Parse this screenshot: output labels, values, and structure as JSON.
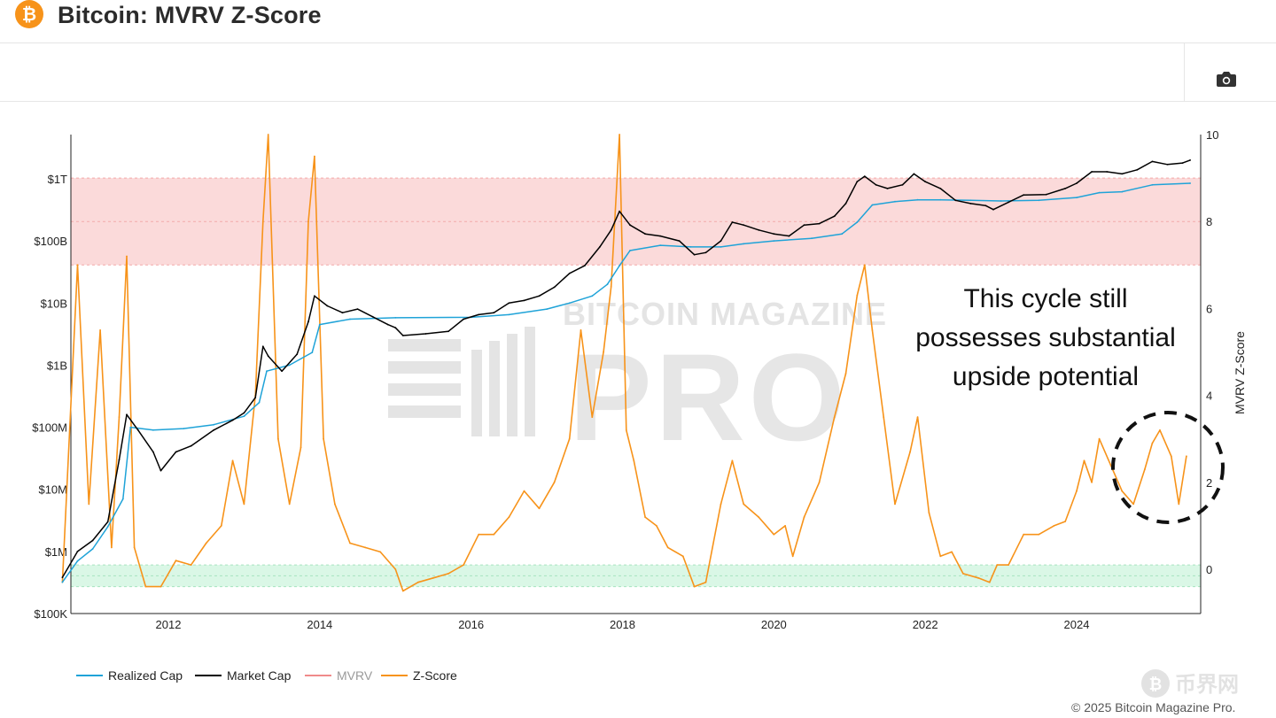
{
  "header": {
    "title": "Bitcoin: MVRV Z-Score",
    "logo_glyph": "₿"
  },
  "toolbar": {
    "camera_icon": "camera-icon"
  },
  "watermark": {
    "line1": "BITCOIN MAGAZINE",
    "line2": "PRO"
  },
  "corner_watermark": "币界网",
  "footer": {
    "copyright": "© 2025 Bitcoin Magazine Pro."
  },
  "colors": {
    "realized_cap": "#1fa3d8",
    "market_cap": "#000000",
    "mvrv": "#f08a8a",
    "z_score": "#f7931a",
    "red_band": "#fbdada",
    "green_band": "#daf7e6"
  },
  "chart_data": {
    "type": "line",
    "title": "",
    "x_ticks": [
      "2012",
      "2014",
      "2016",
      "2018",
      "2020",
      "2022",
      "2024"
    ],
    "y_left_ticks": [
      "$1T",
      "$100B",
      "$10B",
      "$1B",
      "$100M",
      "$10M",
      "$1M",
      "$100K"
    ],
    "y_right_ticks": [
      "10",
      "8",
      "6",
      "4",
      "2",
      "0"
    ],
    "y_right_label": "MVRV Z-Score",
    "y_left_scale": "log",
    "y_left_range": [
      "$100K",
      "$1T"
    ],
    "y_right_range": [
      -1,
      10
    ],
    "bands": [
      {
        "name": "red-zone",
        "z_range": [
          7,
          9
        ]
      },
      {
        "name": "green-zone",
        "z_range": [
          -0.4,
          0.1
        ]
      }
    ],
    "annotation": {
      "text": [
        "This cycle still",
        "possesses substantial",
        "upside potential"
      ]
    },
    "legend": [
      {
        "name": "Realized Cap",
        "color": "#1fa3d8"
      },
      {
        "name": "Market Cap",
        "color": "#000000"
      },
      {
        "name": "MVRV",
        "color": "#f08a8a"
      },
      {
        "name": "Z-Score",
        "color": "#f7931a"
      }
    ],
    "series": [
      {
        "name": "Z-Score",
        "x": [
          2010.6,
          2010.8,
          2010.95,
          2011.1,
          2011.25,
          2011.35,
          2011.45,
          2011.55,
          2011.7,
          2011.9,
          2012.1,
          2012.3,
          2012.5,
          2012.7,
          2012.85,
          2013.0,
          2013.15,
          2013.25,
          2013.32,
          2013.45,
          2013.6,
          2013.75,
          2013.85,
          2013.93,
          2014.05,
          2014.2,
          2014.4,
          2014.6,
          2014.8,
          2015.0,
          2015.1,
          2015.3,
          2015.5,
          2015.7,
          2015.9,
          2016.1,
          2016.3,
          2016.5,
          2016.7,
          2016.9,
          2017.1,
          2017.3,
          2017.45,
          2017.6,
          2017.75,
          2017.85,
          2017.96,
          2018.05,
          2018.15,
          2018.3,
          2018.45,
          2018.6,
          2018.8,
          2018.95,
          2019.1,
          2019.3,
          2019.45,
          2019.6,
          2019.8,
          2020.0,
          2020.15,
          2020.25,
          2020.4,
          2020.6,
          2020.8,
          2020.95,
          2021.1,
          2021.2,
          2021.3,
          2021.45,
          2021.6,
          2021.8,
          2021.9,
          2022.05,
          2022.2,
          2022.35,
          2022.5,
          2022.7,
          2022.85,
          2022.95,
          2023.1,
          2023.3,
          2023.5,
          2023.7,
          2023.85,
          2024.0,
          2024.1,
          2024.2,
          2024.3,
          2024.45,
          2024.6,
          2024.75,
          2024.9,
          2025.0,
          2025.1,
          2025.25,
          2025.35,
          2025.45
        ],
        "values": [
          -0.3,
          7.0,
          1.5,
          5.5,
          0.5,
          3.5,
          7.2,
          0.5,
          -0.4,
          -0.4,
          0.2,
          0.1,
          0.6,
          1.0,
          2.5,
          1.5,
          4.0,
          8.0,
          10.0,
          3.0,
          1.5,
          2.8,
          8.0,
          9.5,
          3.0,
          1.5,
          0.6,
          0.5,
          0.4,
          0.0,
          -0.5,
          -0.3,
          -0.2,
          -0.1,
          0.1,
          0.8,
          0.8,
          1.2,
          1.8,
          1.4,
          2.0,
          3.0,
          5.5,
          3.5,
          5.0,
          6.5,
          10.0,
          3.2,
          2.5,
          1.2,
          1.0,
          0.5,
          0.3,
          -0.4,
          -0.3,
          1.5,
          2.5,
          1.5,
          1.2,
          0.8,
          1.0,
          0.3,
          1.2,
          2.0,
          3.5,
          4.5,
          6.3,
          7.0,
          5.5,
          3.5,
          1.5,
          2.7,
          3.5,
          1.3,
          0.3,
          0.4,
          -0.1,
          -0.2,
          -0.3,
          0.1,
          0.1,
          0.8,
          0.8,
          1.0,
          1.1,
          1.8,
          2.5,
          2.0,
          3.0,
          2.4,
          1.8,
          1.5,
          2.3,
          2.9,
          3.2,
          2.6,
          1.5,
          2.6
        ]
      },
      {
        "name": "Market Cap",
        "x": [
          2010.6,
          2010.8,
          2011.0,
          2011.2,
          2011.35,
          2011.45,
          2011.6,
          2011.8,
          2011.9,
          2012.1,
          2012.3,
          2012.6,
          2012.85,
          2013.0,
          2013.15,
          2013.25,
          2013.32,
          2013.5,
          2013.7,
          2013.85,
          2013.93,
          2014.1,
          2014.3,
          2014.5,
          2014.7,
          2014.9,
          2015.0,
          2015.1,
          2015.4,
          2015.7,
          2015.9,
          2016.1,
          2016.3,
          2016.5,
          2016.7,
          2016.9,
          2017.1,
          2017.3,
          2017.5,
          2017.7,
          2017.85,
          2017.96,
          2018.1,
          2018.3,
          2018.5,
          2018.75,
          2018.95,
          2019.1,
          2019.3,
          2019.45,
          2019.6,
          2019.8,
          2020.0,
          2020.2,
          2020.4,
          2020.6,
          2020.8,
          2020.95,
          2021.1,
          2021.2,
          2021.35,
          2021.5,
          2021.7,
          2021.85,
          2022.0,
          2022.2,
          2022.4,
          2022.6,
          2022.8,
          2022.9,
          2023.1,
          2023.3,
          2023.6,
          2023.85,
          2024.0,
          2024.2,
          2024.4,
          2024.6,
          2024.8,
          2025.0,
          2025.2,
          2025.4,
          2025.5
        ],
        "values": [
          380000.0,
          1000000.0,
          1500000.0,
          3000000.0,
          30000000.0,
          160000000.0,
          90000000.0,
          40000000.0,
          20000000.0,
          40000000.0,
          50000000.0,
          90000000.0,
          130000000.0,
          170000000.0,
          300000000.0,
          2000000000.0,
          1400000000.0,
          800000000.0,
          1500000000.0,
          5000000000.0,
          13000000000.0,
          9000000000.0,
          7000000000.0,
          8000000000.0,
          6000000000.0,
          4500000000.0,
          4000000000.0,
          3000000000.0,
          3200000000.0,
          3500000000.0,
          5500000000.0,
          6500000000.0,
          7000000000.0,
          10000000000.0,
          11000000000.0,
          13000000000.0,
          18000000000.0,
          30000000000.0,
          40000000000.0,
          80000000000.0,
          150000000000.0,
          300000000000.0,
          180000000000.0,
          130000000000.0,
          120000000000.0,
          100000000000.0,
          60000000000.0,
          65000000000.0,
          100000000000.0,
          200000000000.0,
          180000000000.0,
          150000000000.0,
          130000000000.0,
          120000000000.0,
          180000000000.0,
          190000000000.0,
          250000000000.0,
          400000000000.0,
          900000000000.0,
          1100000000000.0,
          800000000000.0,
          700000000000.0,
          800000000000.0,
          1200000000000.0,
          900000000000.0,
          700000000000.0,
          450000000000.0,
          400000000000.0,
          370000000000.0,
          320000000000.0,
          420000000000.0,
          550000000000.0,
          560000000000.0,
          700000000000.0,
          850000000000.0,
          1300000000000.0,
          1300000000000.0,
          1200000000000.0,
          1400000000000.0,
          1900000000000.0,
          1700000000000.0,
          1800000000000.0,
          2000000000000.0
        ]
      },
      {
        "name": "Realized Cap",
        "x": [
          2010.6,
          2010.8,
          2011.0,
          2011.2,
          2011.4,
          2011.5,
          2011.8,
          2012.2,
          2012.6,
          2013.0,
          2013.2,
          2013.3,
          2013.6,
          2013.9,
          2014.0,
          2014.4,
          2015.0,
          2016.0,
          2016.5,
          2017.0,
          2017.3,
          2017.6,
          2017.8,
          2017.96,
          2018.1,
          2018.5,
          2018.9,
          2019.3,
          2019.6,
          2020.0,
          2020.5,
          2020.9,
          2021.1,
          2021.3,
          2021.6,
          2021.9,
          2022.2,
          2022.6,
          2023.0,
          2023.5,
          2024.0,
          2024.3,
          2024.6,
          2025.0,
          2025.5
        ],
        "values": [
          320000.0,
          700000.0,
          1100000.0,
          2500000.0,
          7000000.0,
          100000000.0,
          90000000.0,
          95000000.0,
          110000000.0,
          150000000.0,
          250000000.0,
          800000000.0,
          1000000000.0,
          1600000000.0,
          4500000000.0,
          5500000000.0,
          5800000000.0,
          5900000000.0,
          6500000000.0,
          8000000000.0,
          10000000000.0,
          13000000000.0,
          20000000000.0,
          40000000000.0,
          70000000000.0,
          85000000000.0,
          80000000000.0,
          80000000000.0,
          90000000000.0,
          100000000000.0,
          110000000000.0,
          130000000000.0,
          200000000000.0,
          380000000000.0,
          430000000000.0,
          460000000000.0,
          460000000000.0,
          450000000000.0,
          440000000000.0,
          450000000000.0,
          500000000000.0,
          600000000000.0,
          620000000000.0,
          800000000000.0,
          850000000000.0
        ]
      }
    ]
  }
}
